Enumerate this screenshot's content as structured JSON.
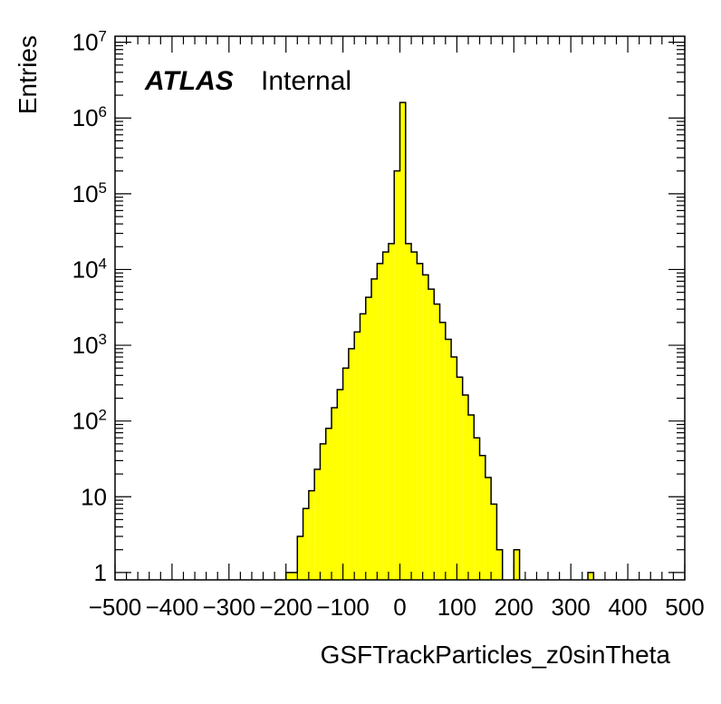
{
  "chart_data": {
    "type": "bar",
    "subtype": "histogram",
    "title": "",
    "xlabel": "GSFTrackParticles_z0sinTheta",
    "ylabel": "Entries",
    "experiment_label": "ATLAS",
    "status_label": "Internal",
    "xlim": [
      -500,
      500
    ],
    "ylim": [
      0.8,
      12000000
    ],
    "yscale": "log",
    "grid": false,
    "legend": "none",
    "fill_color": "#ffff00",
    "line_color": "#000000",
    "x_ticks": [
      {
        "value": -500,
        "label": "−500"
      },
      {
        "value": -400,
        "label": "−400"
      },
      {
        "value": -300,
        "label": "−300"
      },
      {
        "value": -200,
        "label": "−200"
      },
      {
        "value": -100,
        "label": "−100"
      },
      {
        "value": 0,
        "label": "0"
      },
      {
        "value": 100,
        "label": "100"
      },
      {
        "value": 200,
        "label": "200"
      },
      {
        "value": 300,
        "label": "300"
      },
      {
        "value": 400,
        "label": "400"
      },
      {
        "value": 500,
        "label": "500"
      }
    ],
    "y_ticks": [
      {
        "value": 1,
        "base": "1",
        "exp": ""
      },
      {
        "value": 10,
        "base": "10",
        "exp": ""
      },
      {
        "value": 100,
        "base": "10",
        "exp": "2"
      },
      {
        "value": 1000,
        "base": "10",
        "exp": "3"
      },
      {
        "value": 10000,
        "base": "10",
        "exp": "4"
      },
      {
        "value": 100000,
        "base": "10",
        "exp": "5"
      },
      {
        "value": 1000000,
        "base": "10",
        "exp": "6"
      },
      {
        "value": 10000000,
        "base": "10",
        "exp": "7"
      }
    ],
    "bin_width": 10,
    "bins": [
      {
        "x0": -200,
        "x1": -190,
        "value": 1
      },
      {
        "x0": -190,
        "x1": -180,
        "value": 1
      },
      {
        "x0": -180,
        "x1": -170,
        "value": 3
      },
      {
        "x0": -170,
        "x1": -160,
        "value": 7
      },
      {
        "x0": -160,
        "x1": -150,
        "value": 12
      },
      {
        "x0": -150,
        "x1": -140,
        "value": 23
      },
      {
        "x0": -140,
        "x1": -130,
        "value": 50
      },
      {
        "x0": -130,
        "x1": -120,
        "value": 80
      },
      {
        "x0": -120,
        "x1": -110,
        "value": 150
      },
      {
        "x0": -110,
        "x1": -100,
        "value": 260
      },
      {
        "x0": -100,
        "x1": -90,
        "value": 500
      },
      {
        "x0": -90,
        "x1": -80,
        "value": 900
      },
      {
        "x0": -80,
        "x1": -70,
        "value": 1500
      },
      {
        "x0": -70,
        "x1": -60,
        "value": 2600
      },
      {
        "x0": -60,
        "x1": -50,
        "value": 4300
      },
      {
        "x0": -50,
        "x1": -40,
        "value": 7500
      },
      {
        "x0": -40,
        "x1": -30,
        "value": 12000
      },
      {
        "x0": -30,
        "x1": -20,
        "value": 17000
      },
      {
        "x0": -20,
        "x1": -10,
        "value": 22000
      },
      {
        "x0": -10,
        "x1": 0,
        "value": 200000
      },
      {
        "x0": 0,
        "x1": 10,
        "value": 1600000
      },
      {
        "x0": 10,
        "x1": 20,
        "value": 22000
      },
      {
        "x0": 20,
        "x1": 30,
        "value": 17000
      },
      {
        "x0": 30,
        "x1": 40,
        "value": 12000
      },
      {
        "x0": 40,
        "x1": 50,
        "value": 8500
      },
      {
        "x0": 50,
        "x1": 60,
        "value": 5500
      },
      {
        "x0": 60,
        "x1": 70,
        "value": 3500
      },
      {
        "x0": 70,
        "x1": 80,
        "value": 2000
      },
      {
        "x0": 80,
        "x1": 90,
        "value": 1200
      },
      {
        "x0": 90,
        "x1": 100,
        "value": 700
      },
      {
        "x0": 100,
        "x1": 110,
        "value": 380
      },
      {
        "x0": 110,
        "x1": 120,
        "value": 220
      },
      {
        "x0": 120,
        "x1": 130,
        "value": 120
      },
      {
        "x0": 130,
        "x1": 140,
        "value": 60
      },
      {
        "x0": 140,
        "x1": 150,
        "value": 35
      },
      {
        "x0": 150,
        "x1": 160,
        "value": 18
      },
      {
        "x0": 160,
        "x1": 170,
        "value": 8
      },
      {
        "x0": 170,
        "x1": 180,
        "value": 2
      },
      {
        "x0": 200,
        "x1": 210,
        "value": 2
      },
      {
        "x0": 330,
        "x1": 340,
        "value": 1
      }
    ]
  }
}
